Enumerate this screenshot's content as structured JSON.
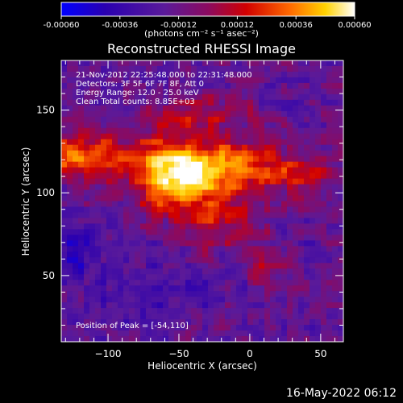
{
  "chart_data": {
    "type": "heatmap",
    "title": "Reconstructed RHESSI Image",
    "xlabel": "Heliocentric X (arcsec)",
    "ylabel": "Heliocentric Y (arcsec)",
    "xlim": [
      -133,
      66
    ],
    "ylim": [
      10,
      180
    ],
    "x_ticks": [
      -100,
      -50,
      0,
      50
    ],
    "y_ticks": [
      50,
      100,
      150
    ],
    "colorbar": {
      "label": "(photons cm⁻² s⁻¹ asec⁻²)",
      "range": [
        -0.0006,
        0.0006
      ],
      "ticks": [
        -0.0006,
        -0.00036,
        -0.00012,
        0.00012,
        0.00036,
        0.0006
      ],
      "tick_labels": [
        "-0.00060",
        "-0.00036",
        "-0.00012",
        "0.00012",
        "0.00036",
        "0.00060"
      ],
      "colormap": [
        "#0000ff",
        "#2a00b0",
        "#5a1a9a",
        "#8b0a60",
        "#d10000",
        "#ff6a00",
        "#ffd200",
        "#ffffff"
      ]
    },
    "annotations": [
      "21-Nov-2012 22:25:48.000 to 22:31:48.000",
      "Detectors: 3F 5F 6F 7F 8F, Att 0",
      "Energy Range: 12.0 - 25.0 keV",
      "Clean    Total counts: 8.85E+03"
    ],
    "peak_label": "Position of Peak = [-54,110]",
    "peak": [
      -54,
      110
    ]
  },
  "footer": {
    "timestamp": "16-May-2022 06:12"
  }
}
